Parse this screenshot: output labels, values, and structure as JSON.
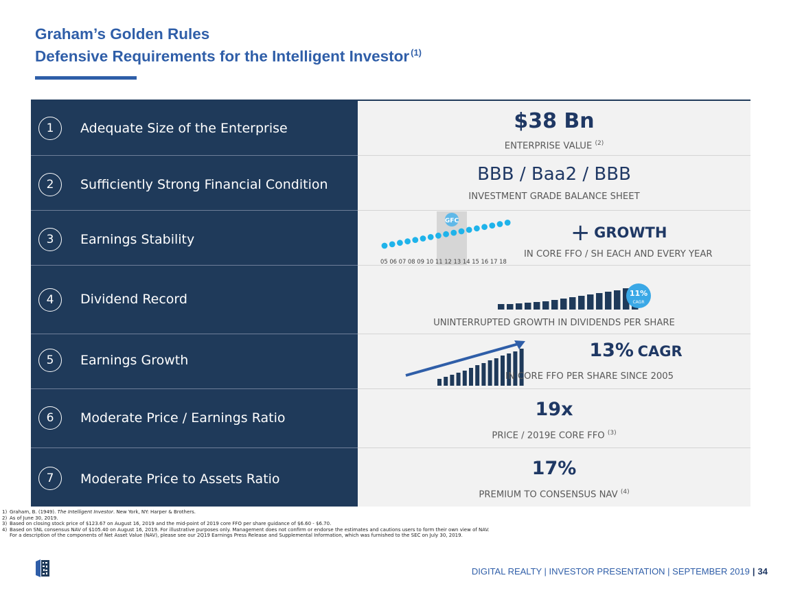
{
  "title": {
    "line1": "Graham’s Golden Rules",
    "line2": "Defensive Requirements for the Intelligent Investor",
    "note": "(1)"
  },
  "rows": [
    {
      "num": "1",
      "title": "Adequate Size of the Enterprise",
      "value": "$38 Bn",
      "sub": "ENTERPRISE VALUE",
      "sub_note": "(2)"
    },
    {
      "num": "2",
      "title": "Sufficiently Strong Financial Condition",
      "value": "BBB / Baa2 / BBB",
      "sub": "INVESTMENT GRADE BALANCE SHEET"
    },
    {
      "num": "3",
      "title": "Earnings Stability",
      "value_symbol": "+",
      "value": "GROWTH",
      "sub": "IN CORE FFO  / SH EACH AND EVERY YEAR",
      "gfc_label": "GFC",
      "years": "05 06 07 08 09 10 11 12 13 14 15 16 17 18"
    },
    {
      "num": "4",
      "title": "Dividend Record",
      "sub": "UNINTERRUPTED GROWTH IN DIVIDENDS PER SHARE",
      "badge_value": "11%",
      "badge_label": "CAGR"
    },
    {
      "num": "5",
      "title": "Earnings Growth",
      "value": "13%",
      "value_suffix": "CAGR",
      "sub": "IN CORE FFO PER SHARE SINCE 2005"
    },
    {
      "num": "6",
      "title": "Moderate Price / Earnings Ratio",
      "value": "19x",
      "sub": "PRICE / 2019E CORE FFO",
      "sub_note": "(3)"
    },
    {
      "num": "7",
      "title": "Moderate Price to Assets Ratio",
      "value": "17%",
      "sub": "PREMIUM TO CONSENSUS NAV",
      "sub_note": "(4)"
    }
  ],
  "footnotes": {
    "f1_num": "1)",
    "f1_a": "Graham, B. (1949). ",
    "f1_b": "The Intelligent Investor",
    "f1_c": ".  New York, NY: Harper & Brothers.",
    "f2_num": "2)",
    "f2": "As of June 30, 2019.",
    "f3_num": "3)",
    "f3": "Based on closing stock price of $123.67 on August 16, 2019 and the mid-point of 2019 core FFO per share guidance of $6.60 - $6.70.",
    "f4_num": "4)",
    "f4": "Based on SNL consensus NAV of $105.40 on August 16, 2019. For illustrative purposes only.  Management does not confirm or endorse the estimates and cautions users to form their own view of NAV.",
    "f4b": "For a description of the components of Net Asset Value (NAV), please see our 2Q19 Earnings Press Release and Supplemental Information, which was furnished to the SEC on July 30, 2019."
  },
  "footer": {
    "text": "DIGITAL REALTY | INVESTOR PRESENTATION | SEPTEMBER 2019",
    "separator": "|",
    "page": "34"
  },
  "colors": {
    "navy": "#1f3a5a",
    "blue": "#2f5ea8",
    "dot": "#1fb3ea",
    "badge": "#3aa8e6"
  }
}
